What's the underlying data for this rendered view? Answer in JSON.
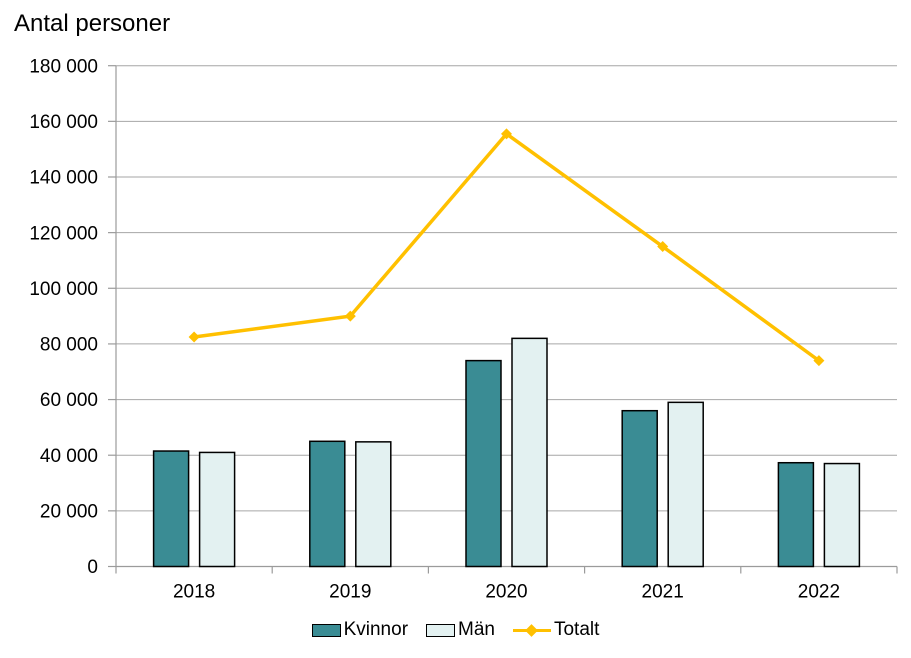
{
  "chart_data": {
    "type": "bar",
    "title": "Antal personer",
    "categories": [
      "2018",
      "2019",
      "2020",
      "2021",
      "2022"
    ],
    "series": [
      {
        "name": "Kvinnor",
        "kind": "bar",
        "color": "#3A8C94",
        "border_color": "#000000",
        "values": [
          41500,
          45000,
          74000,
          56000,
          37300
        ]
      },
      {
        "name": "Män",
        "kind": "bar",
        "color": "#E3F1F1",
        "border_color": "#000000",
        "values": [
          41000,
          44800,
          82000,
          59000,
          37000
        ]
      },
      {
        "name": "Totalt",
        "kind": "line",
        "color": "#FFC000",
        "marker": "diamond",
        "values": [
          82500,
          90000,
          155500,
          115000,
          74000
        ]
      }
    ],
    "xlabel": "",
    "ylabel": "",
    "ylim": [
      0,
      180000
    ],
    "ytick_step": 20000,
    "ytick_labels": [
      "0",
      "20 000",
      "40 000",
      "60 000",
      "80 000",
      "100 000",
      "120 000",
      "140 000",
      "160 000",
      "180 000"
    ],
    "grid": "horizontal",
    "grid_color": "#A6A6A6",
    "axis_color": "#9B9B9B",
    "text_color": "#000000",
    "background_color": "#FFFFFF",
    "legend_position": "bottom"
  }
}
